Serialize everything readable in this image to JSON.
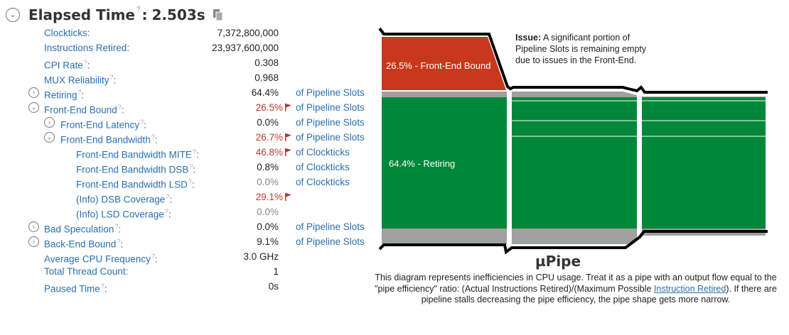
{
  "header": {
    "title": "Elapsed Time",
    "help": "?",
    "separator": ":",
    "value": "2.503s"
  },
  "metrics": [
    {
      "label": "Clockticks",
      "help": "",
      "value": "7,372,800,000",
      "unit": "",
      "indent": 0,
      "expander": "none",
      "flag": false,
      "style": "normal"
    },
    {
      "label": "Instructions Retired",
      "help": "",
      "value": "23,937,600,000",
      "unit": "",
      "indent": 0,
      "expander": "none",
      "flag": false,
      "style": "normal"
    },
    {
      "label": "CPI Rate",
      "help": "?",
      "value": "0.308",
      "unit": "",
      "indent": 0,
      "expander": "none",
      "flag": false,
      "style": "normal"
    },
    {
      "label": "MUX Reliability",
      "help": "?",
      "value": "0.968",
      "unit": "",
      "indent": 0,
      "expander": "none",
      "flag": false,
      "style": "normal"
    },
    {
      "label": "Retiring",
      "help": "?",
      "value": "64.4%",
      "unit": "of Pipeline Slots",
      "indent": 0,
      "expander": "collapsed",
      "flag": false,
      "style": "normal"
    },
    {
      "label": "Front-End Bound",
      "help": "?",
      "value": "26.5%",
      "unit": "of Pipeline Slots",
      "indent": 0,
      "expander": "expanded",
      "flag": true,
      "style": "red"
    },
    {
      "label": "Front-End Latency",
      "help": "?",
      "value": "0.0%",
      "unit": "of Pipeline Slots",
      "indent": 1,
      "expander": "collapsed",
      "flag": false,
      "style": "normal"
    },
    {
      "label": "Front-End Bandwidth",
      "help": "?",
      "value": "26.7%",
      "unit": "of Pipeline Slots",
      "indent": 1,
      "expander": "expanded",
      "flag": true,
      "style": "red"
    },
    {
      "label": "Front-End Bandwidth MITE",
      "help": "?",
      "value": "46.8%",
      "unit": "of Clockticks",
      "indent": 2,
      "expander": "none",
      "flag": true,
      "style": "red"
    },
    {
      "label": "Front-End Bandwidth DSB",
      "help": "?",
      "value": "0.8%",
      "unit": "of Clockticks",
      "indent": 2,
      "expander": "none",
      "flag": false,
      "style": "normal"
    },
    {
      "label": "Front-End Bandwidth LSD",
      "help": "?",
      "value": "0.0%",
      "unit": "of Clockticks",
      "indent": 2,
      "expander": "none",
      "flag": false,
      "style": "gray"
    },
    {
      "label": "(Info) DSB Coverage",
      "help": "?",
      "value": "29.1%",
      "unit": "",
      "indent": 2,
      "expander": "none",
      "flag": true,
      "style": "red"
    },
    {
      "label": "(Info) LSD Coverage",
      "help": "?",
      "value": "0.0%",
      "unit": "",
      "indent": 2,
      "expander": "none",
      "flag": false,
      "style": "gray"
    },
    {
      "label": "Bad Speculation",
      "help": "?",
      "value": "0.0%",
      "unit": "of Pipeline Slots",
      "indent": 0,
      "expander": "collapsed",
      "flag": false,
      "style": "normal"
    },
    {
      "label": "Back-End Bound",
      "help": "?",
      "value": "9.1%",
      "unit": "of Pipeline Slots",
      "indent": 0,
      "expander": "collapsed",
      "flag": false,
      "style": "normal"
    },
    {
      "label": "Average CPU Frequency",
      "help": "?",
      "value": "3.0 GHz",
      "unit": "",
      "indent": 0,
      "expander": "none",
      "flag": false,
      "style": "normal"
    },
    {
      "label": "Total Thread Count",
      "help": "",
      "value": "1",
      "unit": "",
      "indent": 0,
      "expander": "none",
      "flag": false,
      "style": "normal"
    },
    {
      "label": "Paused Time",
      "help": "?",
      "value": "0s",
      "unit": "",
      "indent": 0,
      "expander": "none",
      "flag": false,
      "style": "normal"
    }
  ],
  "pipe": {
    "title": "µPipe",
    "front_end_label": "26.5% - Front-End Bound",
    "retiring_label": "64.4% - Retiring",
    "issue_title": "Issue:",
    "issue_text": "A significant portion of Pipeline Slots is remaining empty due to issues in the Front-End.",
    "desc_before": "This diagram represents inefficiencies in CPU usage. Treat it as a pipe with an output flow equal to the \"pipe efficiency\" ratio: (Actual Instructions Retired)/(Maximum Possible ",
    "desc_link": "Instruction Retired",
    "desc_after": "). If there are pipeline stalls decreasing the pipe efficiency, the pipe shape gets more narrow.",
    "colors": {
      "front_end": "#c8381c",
      "retiring": "#00873a",
      "bad_spec": "#a0a0a0",
      "outline": "#000000"
    }
  }
}
